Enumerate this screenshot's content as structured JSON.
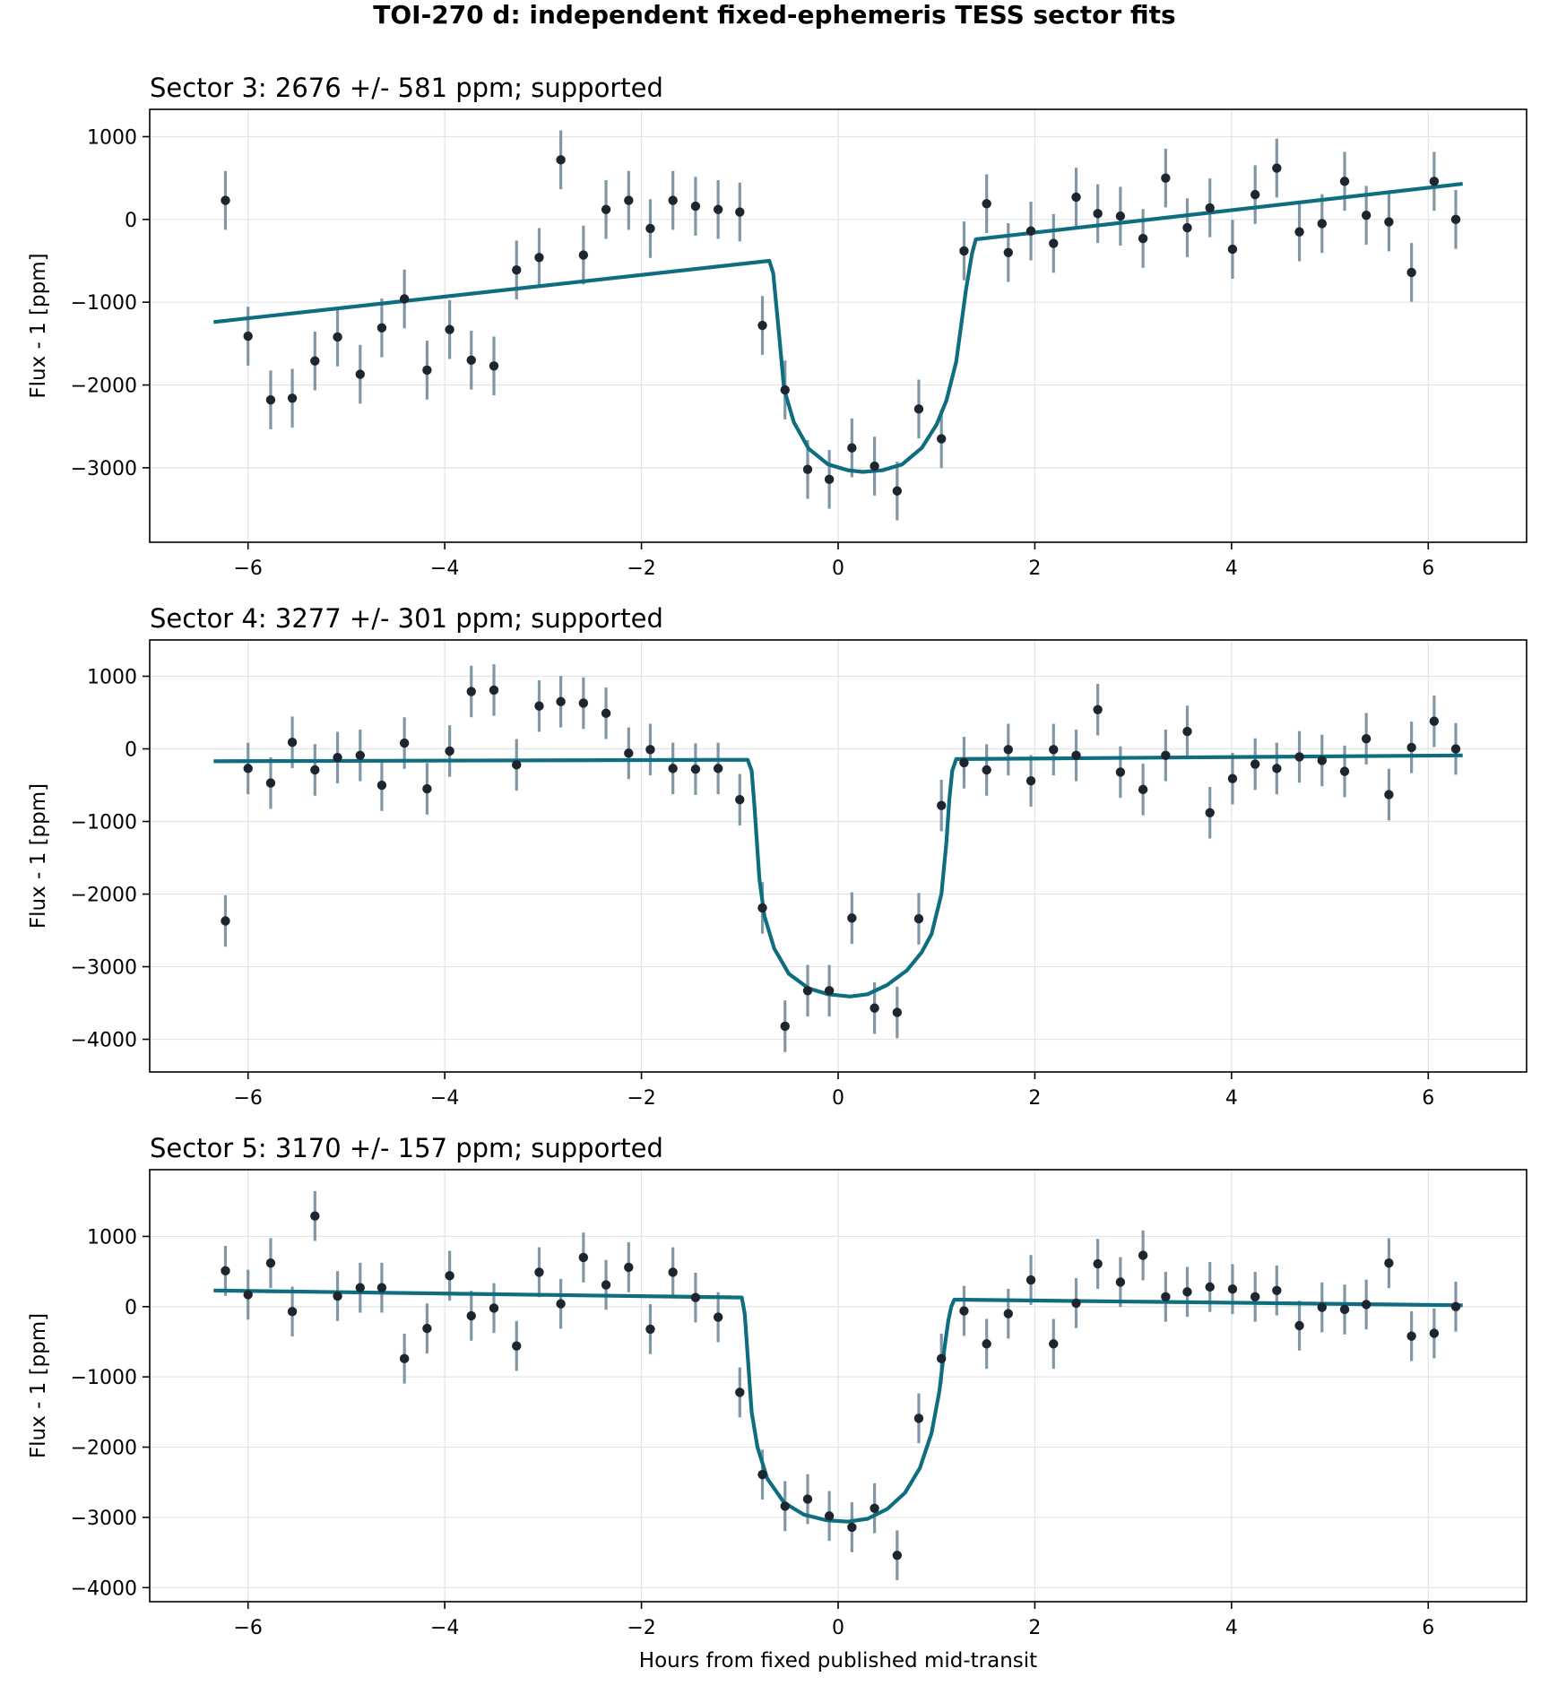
{
  "figure": {
    "title": "TOI-270 d: independent fixed-ephemeris TESS sector fits",
    "xlabel": "Hours from fixed published mid-transit",
    "ylabel": "Flux - 1 [ppm]"
  },
  "colors": {
    "model": "#0e6e80",
    "errorbar": "#7f97a6",
    "point": "#1f2530"
  },
  "chart_data": [
    {
      "type": "scatter",
      "title": "Sector 3: 2676 +/- 581 ppm; supported",
      "xlabel": "",
      "ylabel": "Flux - 1 [ppm]",
      "xlim": [
        -7.0,
        7.0
      ],
      "ylim": [
        -3900,
        1330
      ],
      "xticks": [
        -6,
        -4,
        -2,
        0,
        2,
        4,
        6
      ],
      "yticks": [
        -3000,
        -2000,
        -1000,
        0,
        1000
      ],
      "grid": true,
      "series": [
        {
          "type": "errorbar",
          "x": [
            -6.23,
            -6.0,
            -5.77,
            -5.55,
            -5.32,
            -5.09,
            -4.86,
            -4.64,
            -4.41,
            -4.18,
            -3.95,
            -3.73,
            -3.5,
            -3.27,
            -3.04,
            -2.82,
            -2.59,
            -2.36,
            -2.13,
            -1.91,
            -1.68,
            -1.45,
            -1.22,
            -1.0,
            -0.77,
            -0.54,
            -0.31,
            -0.09,
            0.14,
            0.37,
            0.6,
            0.82,
            1.05,
            1.28,
            1.51,
            1.73,
            1.96,
            2.19,
            2.42,
            2.64,
            2.87,
            3.1,
            3.33,
            3.55,
            3.78,
            4.01,
            4.24,
            4.46,
            4.69,
            4.92,
            5.15,
            5.37,
            5.6,
            5.83,
            6.06,
            6.28
          ],
          "y": [
            230,
            -1410,
            -2180,
            -2160,
            -1710,
            -1420,
            -1870,
            -1310,
            -960,
            -1820,
            -1330,
            -1700,
            -1770,
            -610,
            -460,
            720,
            -430,
            120,
            230,
            -110,
            230,
            160,
            120,
            90,
            -1280,
            -2060,
            -3020,
            -3140,
            -2760,
            -2980,
            -3280,
            -2290,
            -2650,
            -380,
            190,
            -400,
            -140,
            -290,
            270,
            70,
            40,
            -230,
            500,
            -100,
            140,
            -360,
            300,
            620,
            -150,
            -50,
            460,
            50,
            -30,
            -640,
            460,
            0
          ],
          "yerr": 355
        },
        {
          "type": "line",
          "name": "",
          "x": [
            -6.35,
            -0.7,
            -0.66,
            -0.6,
            -0.55,
            -0.45,
            -0.3,
            -0.1,
            0.1,
            0.25,
            0.45,
            0.65,
            0.85,
            1.0,
            1.1,
            1.2,
            1.3,
            1.36,
            1.4,
            6.35
          ],
          "y": [
            -1240,
            -500,
            -650,
            -1400,
            -2050,
            -2450,
            -2770,
            -2960,
            -3030,
            -3050,
            -3030,
            -2960,
            -2760,
            -2480,
            -2190,
            -1720,
            -850,
            -420,
            -240,
            430
          ]
        }
      ]
    },
    {
      "type": "scatter",
      "title": "Sector 4: 3277 +/- 301 ppm; supported",
      "xlabel": "",
      "ylabel": "Flux - 1 [ppm]",
      "xlim": [
        -7.0,
        7.0
      ],
      "ylim": [
        -4450,
        1500
      ],
      "xticks": [
        -6,
        -4,
        -2,
        0,
        2,
        4,
        6
      ],
      "yticks": [
        -4000,
        -3000,
        -2000,
        -1000,
        0,
        1000
      ],
      "grid": true,
      "series": [
        {
          "type": "errorbar",
          "x": [
            -6.23,
            -6.0,
            -5.77,
            -5.55,
            -5.32,
            -5.09,
            -4.86,
            -4.64,
            -4.41,
            -4.18,
            -3.95,
            -3.73,
            -3.5,
            -3.27,
            -3.04,
            -2.82,
            -2.59,
            -2.36,
            -2.13,
            -1.91,
            -1.68,
            -1.45,
            -1.22,
            -1.0,
            -0.77,
            -0.54,
            -0.31,
            -0.09,
            0.14,
            0.37,
            0.6,
            0.82,
            1.05,
            1.28,
            1.51,
            1.73,
            1.96,
            2.19,
            2.42,
            2.64,
            2.87,
            3.1,
            3.33,
            3.55,
            3.78,
            4.01,
            4.24,
            4.46,
            4.69,
            4.92,
            5.15,
            5.37,
            5.6,
            5.83,
            6.06,
            6.28
          ],
          "y": [
            -2370,
            -270,
            -470,
            90,
            -290,
            -120,
            -90,
            -500,
            80,
            -550,
            -30,
            790,
            810,
            -220,
            590,
            650,
            630,
            490,
            -60,
            -10,
            -270,
            -280,
            -270,
            -700,
            -2190,
            -3820,
            -3330,
            -3330,
            -2330,
            -3570,
            -3630,
            -2340,
            -780,
            -190,
            -290,
            -10,
            -440,
            -10,
            -90,
            540,
            -320,
            -560,
            -90,
            240,
            -880,
            -410,
            -210,
            -270,
            -110,
            -160,
            -310,
            140,
            -630,
            20,
            380,
            0
          ],
          "yerr": 355
        },
        {
          "type": "line",
          "name": "",
          "x": [
            -6.35,
            -0.92,
            -0.88,
            -0.85,
            -0.8,
            -0.75,
            -0.65,
            -0.5,
            -0.3,
            -0.1,
            0.12,
            0.3,
            0.5,
            0.7,
            0.85,
            0.95,
            1.05,
            1.1,
            1.13,
            1.16,
            1.2,
            6.35
          ],
          "y": [
            -170,
            -150,
            -300,
            -800,
            -1800,
            -2300,
            -2750,
            -3100,
            -3300,
            -3380,
            -3410,
            -3380,
            -3250,
            -3050,
            -2800,
            -2550,
            -2000,
            -1300,
            -700,
            -300,
            -140,
            -90
          ]
        }
      ]
    },
    {
      "type": "scatter",
      "title": "Sector 5: 3170 +/- 157 ppm; supported",
      "xlabel": "Hours from fixed published mid-transit",
      "ylabel": "Flux - 1 [ppm]",
      "xlim": [
        -7.0,
        7.0
      ],
      "ylim": [
        -4200,
        1950
      ],
      "xticks": [
        -6,
        -4,
        -2,
        0,
        2,
        4,
        6
      ],
      "yticks": [
        -4000,
        -3000,
        -2000,
        -1000,
        0,
        1000
      ],
      "grid": true,
      "series": [
        {
          "type": "errorbar",
          "x": [
            -6.23,
            -6.0,
            -5.77,
            -5.55,
            -5.32,
            -5.09,
            -4.86,
            -4.64,
            -4.41,
            -4.18,
            -3.95,
            -3.73,
            -3.5,
            -3.27,
            -3.04,
            -2.82,
            -2.59,
            -2.36,
            -2.13,
            -1.91,
            -1.68,
            -1.45,
            -1.22,
            -1.0,
            -0.77,
            -0.54,
            -0.31,
            -0.09,
            0.14,
            0.37,
            0.6,
            0.82,
            1.05,
            1.28,
            1.51,
            1.73,
            1.96,
            2.19,
            2.42,
            2.64,
            2.87,
            3.1,
            3.33,
            3.55,
            3.78,
            4.01,
            4.24,
            4.46,
            4.69,
            4.92,
            5.15,
            5.37,
            5.6,
            5.83,
            6.06,
            6.28
          ],
          "y": [
            510,
            170,
            620,
            -70,
            1290,
            150,
            270,
            270,
            -740,
            -310,
            440,
            -130,
            -20,
            -560,
            490,
            40,
            700,
            310,
            560,
            -320,
            490,
            130,
            -150,
            -1220,
            -2390,
            -2840,
            -2740,
            -2980,
            -3140,
            -2870,
            -3540,
            -1590,
            -740,
            -60,
            -530,
            -100,
            380,
            -530,
            50,
            610,
            350,
            730,
            140,
            210,
            280,
            250,
            140,
            230,
            -270,
            -10,
            -40,
            30,
            620,
            -420,
            -380,
            0
          ],
          "yerr": 355
        },
        {
          "type": "line",
          "name": "",
          "x": [
            -6.35,
            -0.98,
            -0.95,
            -0.92,
            -0.88,
            -0.82,
            -0.72,
            -0.55,
            -0.35,
            -0.12,
            0.1,
            0.3,
            0.5,
            0.68,
            0.83,
            0.95,
            1.03,
            1.08,
            1.12,
            1.15,
            1.18,
            6.35
          ],
          "y": [
            230,
            130,
            -100,
            -700,
            -1500,
            -2000,
            -2450,
            -2790,
            -2960,
            -3040,
            -3060,
            -3020,
            -2880,
            -2650,
            -2300,
            -1800,
            -1200,
            -600,
            -200,
            0,
            100,
            20
          ]
        }
      ]
    }
  ]
}
